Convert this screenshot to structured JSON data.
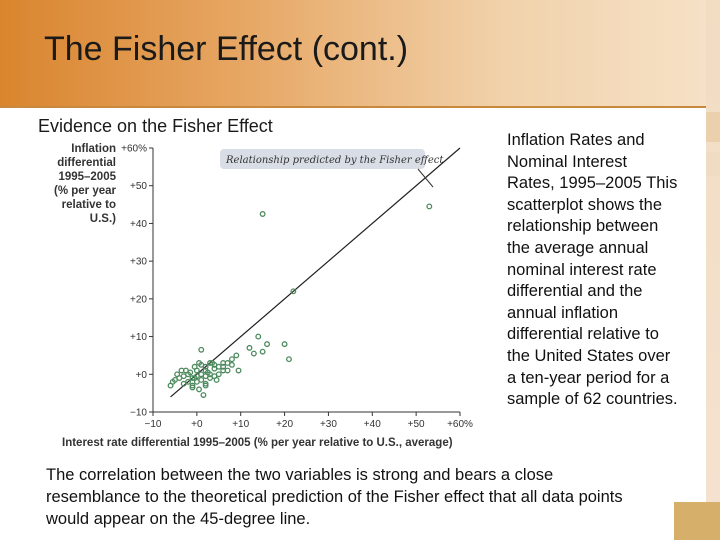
{
  "slide": {
    "title": "The Fisher Effect (cont.)",
    "subtitle": "Evidence on the Fisher Effect",
    "sidebar_text": "Inflation Rates and Nominal Interest Rates, 1995–2005 This scatterplot shows the relationship between the average annual nominal interest rate differential and the annual inflation differential relative to the United States over a ten-year period for a sample of 62 countries.",
    "caption": "The correlation between the two variables is strong and bears a close resemblance to the theoretical prediction of the Fisher effect that all data points would appear on the 45-degree line."
  },
  "colors": {
    "header_orange": "#d9852e",
    "marker": "#4d8a5e",
    "annotation_box": "#d8dde6"
  },
  "chart_data": {
    "type": "scatter",
    "title": "",
    "xlabel": "Interest rate differential 1995–2005 (% per year relative to U.S., average)",
    "ylabel_lines": [
      "Inflation",
      "differential",
      "1995–2005",
      "(% per year",
      "relative to",
      "U.S.)"
    ],
    "xlim": [
      -10,
      60
    ],
    "ylim": [
      -10,
      60
    ],
    "x_ticks": [
      "−10",
      "+0",
      "+10",
      "+20",
      "+30",
      "+40",
      "+50",
      "+60%"
    ],
    "y_ticks": [
      "−10",
      "+0",
      "+10",
      "+20",
      "+30",
      "+40",
      "+50",
      "+60%"
    ],
    "grid": false,
    "reference_line": {
      "label": "Relationship predicted by the Fisher effect",
      "slope": 1,
      "intercept": 0
    },
    "points": [
      [
        15,
        42.5
      ],
      [
        53,
        44.5
      ],
      [
        22,
        22
      ],
      [
        14,
        10
      ],
      [
        20,
        8
      ],
      [
        16,
        8
      ],
      [
        21,
        4
      ],
      [
        13,
        5.5
      ],
      [
        15,
        6
      ],
      [
        12,
        7
      ],
      [
        9,
        5
      ],
      [
        8,
        4
      ],
      [
        7,
        3
      ],
      [
        6,
        2
      ],
      [
        4,
        2.5
      ],
      [
        3,
        3
      ],
      [
        2,
        2
      ],
      [
        1,
        6.5
      ],
      [
        1,
        2.5
      ],
      [
        2,
        1
      ],
      [
        0,
        1
      ],
      [
        1,
        0
      ],
      [
        3,
        0
      ],
      [
        5,
        0
      ],
      [
        6,
        1
      ],
      [
        4,
        1.5
      ],
      [
        2,
        -0.5
      ],
      [
        0,
        -0.5
      ],
      [
        -1,
        -1
      ],
      [
        -2,
        0
      ],
      [
        -3,
        -0.5
      ],
      [
        -2,
        -2
      ],
      [
        0,
        -2
      ],
      [
        1,
        -1.5
      ],
      [
        2,
        -2.5
      ],
      [
        -4,
        -1
      ],
      [
        -5,
        -1.5
      ],
      [
        -6,
        -3
      ],
      [
        -3,
        -2.5
      ],
      [
        -1,
        -3
      ],
      [
        0.5,
        -4
      ],
      [
        1.5,
        -5.5
      ],
      [
        3,
        -1
      ],
      [
        4,
        -0.5
      ],
      [
        5,
        2
      ],
      [
        6,
        3
      ],
      [
        2.5,
        0.5
      ],
      [
        -1.5,
        0.5
      ],
      [
        -2.5,
        1
      ],
      [
        -3.5,
        1
      ],
      [
        -0.5,
        2
      ],
      [
        0.5,
        3
      ],
      [
        3.5,
        3
      ],
      [
        7,
        1
      ],
      [
        8,
        2.5
      ],
      [
        9.5,
        1
      ],
      [
        -4.5,
        0
      ],
      [
        -5.5,
        -2
      ],
      [
        -1,
        -3.5
      ],
      [
        2,
        -3
      ],
      [
        4.5,
        -1.5
      ],
      [
        -0.5,
        -1
      ]
    ]
  }
}
